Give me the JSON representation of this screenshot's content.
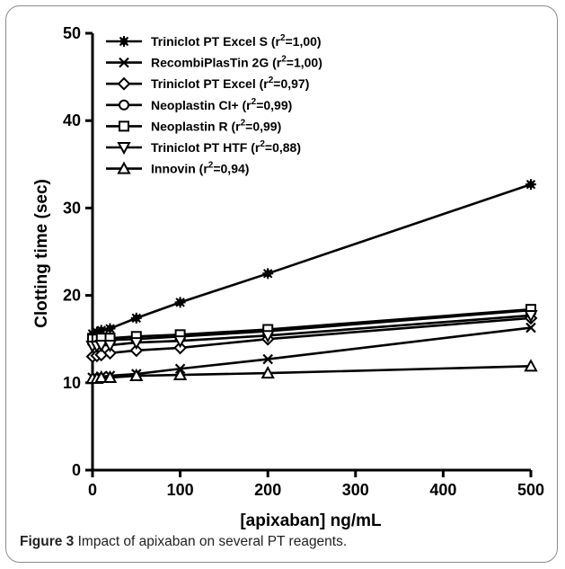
{
  "figure": {
    "caption_label": "Figure 3",
    "caption_text": "Impact of apixaban on several PT reagents."
  },
  "chart_data": {
    "type": "line",
    "xlabel": "[apixaban] ng/mL",
    "ylabel": "Clotting time (sec)",
    "xlim": [
      0,
      500
    ],
    "ylim": [
      0,
      50
    ],
    "xticks": [
      0,
      100,
      200,
      300,
      400,
      500
    ],
    "yticks": [
      0,
      10,
      20,
      30,
      40,
      50
    ],
    "legend_position": "top-left",
    "grid": false,
    "series": [
      {
        "name": "Triniclot PT Excel S (r²=1,00)",
        "name_main": "Triniclot PT Excel S (r",
        "name_sup": "2",
        "name_tail": "=1,00)",
        "marker": "asterisk",
        "x": [
          0,
          5,
          10,
          20,
          50,
          100,
          200,
          500
        ],
        "y": [
          15.6,
          15.8,
          16.0,
          16.2,
          17.4,
          19.2,
          22.5,
          32.7
        ]
      },
      {
        "name": "RecombiPlasTin 2G (r²=1,00)",
        "name_main": "RecombiPlasTin 2G (r",
        "name_sup": "2",
        "name_tail": "=1,00)",
        "marker": "x",
        "x": [
          0,
          5,
          10,
          20,
          50,
          100,
          200,
          500
        ],
        "y": [
          10.6,
          10.6,
          10.7,
          10.8,
          11.0,
          11.6,
          12.7,
          16.3
        ]
      },
      {
        "name": "Triniclot PT Excel (r²=0,97)",
        "name_main": "Triniclot PT Excel (r",
        "name_sup": "2",
        "name_tail": "=0,97)",
        "marker": "diamond",
        "x": [
          0,
          5,
          10,
          20,
          50,
          100,
          200,
          500
        ],
        "y": [
          13.0,
          13.1,
          13.2,
          13.4,
          13.7,
          14.0,
          15.0,
          17.4
        ]
      },
      {
        "name": "Neoplastin CI+ (r²=0,99)",
        "name_main": "Neoplastin CI+ (r",
        "name_sup": "2",
        "name_tail": "=0,99)",
        "marker": "circle",
        "x": [
          0,
          5,
          10,
          20,
          50,
          100,
          200,
          500
        ],
        "y": [
          14.6,
          14.7,
          14.8,
          14.9,
          15.0,
          15.3,
          15.9,
          18.3
        ]
      },
      {
        "name": "Neoplastin R (r²=0,99)",
        "name_main": "Neoplastin R (r",
        "name_sup": "2",
        "name_tail": "=0,99)",
        "marker": "square",
        "x": [
          0,
          5,
          10,
          20,
          50,
          100,
          200,
          500
        ],
        "y": [
          15.0,
          15.0,
          15.1,
          15.1,
          15.3,
          15.5,
          16.1,
          18.4
        ]
      },
      {
        "name": "Triniclot PT HTF (r²=0,88)",
        "name_main": "Triniclot PT HTF (r",
        "name_sup": "2",
        "name_tail": "=0,88)",
        "marker": "triangle-down",
        "x": [
          0,
          5,
          10,
          20,
          50,
          100,
          200,
          500
        ],
        "y": [
          14.2,
          14.2,
          14.3,
          14.3,
          14.6,
          14.8,
          15.4,
          17.7
        ]
      },
      {
        "name": "Innovin (r²=0,94)",
        "name_main": "Innovin (r",
        "name_sup": "2",
        "name_tail": "=0,94)",
        "marker": "triangle-up",
        "x": [
          0,
          5,
          10,
          20,
          50,
          100,
          200,
          500
        ],
        "y": [
          10.5,
          10.5,
          10.6,
          10.6,
          10.8,
          10.9,
          11.1,
          11.9
        ]
      }
    ]
  }
}
